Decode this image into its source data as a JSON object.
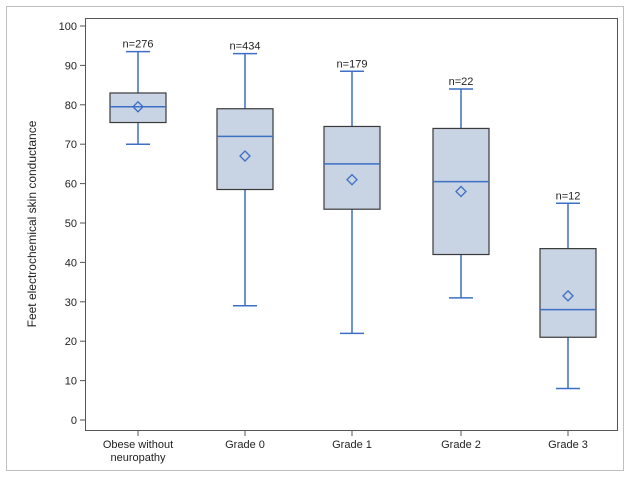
{
  "chart_data": {
    "type": "box",
    "title": "",
    "xlabel": "",
    "ylabel": "Feet electrochemical skin conductance",
    "ylim": [
      0,
      100
    ],
    "yticks": [
      0,
      10,
      20,
      30,
      40,
      50,
      60,
      70,
      80,
      90,
      100
    ],
    "grid": false,
    "legend": "none",
    "categories": [
      {
        "label": [
          "Obese without",
          "neuropathy"
        ],
        "n_label": "n=276",
        "min": 70,
        "q1": 75.5,
        "median": 79.5,
        "q3": 83,
        "max": 93.5,
        "mean": 79.5
      },
      {
        "label": [
          "Grade 0"
        ],
        "n_label": "n=434",
        "min": 29,
        "q1": 58.5,
        "median": 72,
        "q3": 79,
        "max": 93,
        "mean": 67
      },
      {
        "label": [
          "Grade 1"
        ],
        "n_label": "n=179",
        "min": 22,
        "q1": 53.5,
        "median": 65,
        "q3": 74.5,
        "max": 88.5,
        "mean": 61
      },
      {
        "label": [
          "Grade 2"
        ],
        "n_label": "n=22",
        "min": 31,
        "q1": 42,
        "median": 60.5,
        "q3": 74,
        "max": 84,
        "mean": 58
      },
      {
        "label": [
          "Grade 3"
        ],
        "n_label": "n=12",
        "min": 8,
        "q1": 21,
        "median": 28,
        "q3": 43.5,
        "max": 55,
        "mean": 31.5
      }
    ],
    "colors": {
      "box_fill": "#c8d3e3",
      "box_stroke": "#3a3a3a",
      "whisker": "#3d6fc4",
      "median": "#3d6fc4",
      "mean_marker": "#3d6fc4",
      "axis": "#555555",
      "text": "#222222"
    }
  }
}
